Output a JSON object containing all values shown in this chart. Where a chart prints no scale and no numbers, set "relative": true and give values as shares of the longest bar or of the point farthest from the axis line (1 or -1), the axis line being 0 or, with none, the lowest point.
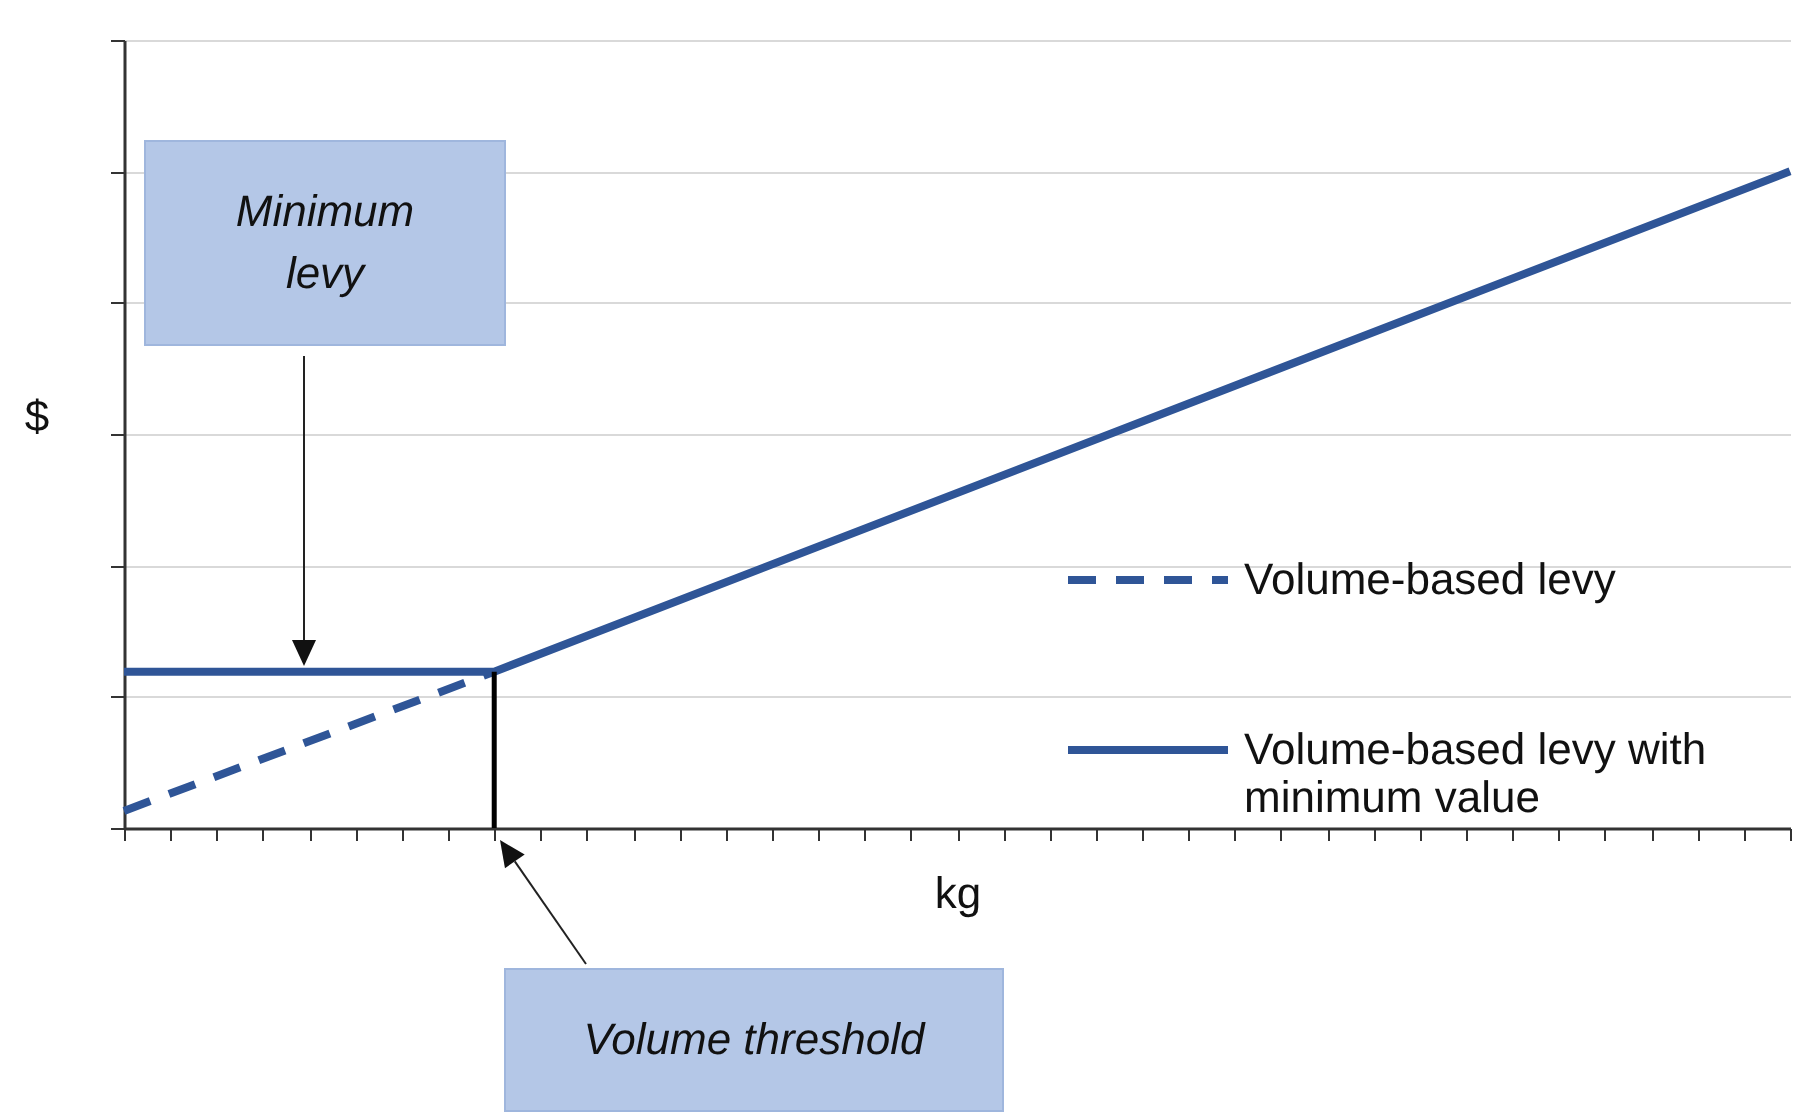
{
  "chart_data": {
    "type": "line",
    "relative": true,
    "xlabel": "kg",
    "ylabel": "$",
    "categories": [
      null,
      null,
      null,
      null,
      null,
      null,
      null,
      null,
      null,
      null,
      null,
      null,
      null,
      null,
      null,
      null,
      null,
      null,
      null,
      null,
      null,
      null,
      null,
      null,
      null,
      null,
      null,
      null,
      null,
      null,
      null,
      null,
      null,
      null,
      null,
      null,
      null
    ],
    "series": [
      {
        "name": "Volume-based levy",
        "color": "#2f5597",
        "line_style": "dashed",
        "values": [
          0.026,
          null,
          null,
          null,
          null,
          null,
          null,
          null,
          0.238,
          null,
          null,
          null,
          null,
          null,
          null,
          null,
          null,
          null,
          null,
          null,
          null,
          null,
          null,
          null,
          null,
          null,
          null,
          null,
          null,
          null,
          null,
          null,
          null,
          null,
          null,
          null,
          null
        ]
      },
      {
        "name": "Volume-based levy with minimum value",
        "color": "#2f5597",
        "line_style": "solid",
        "values": [
          0.238,
          null,
          null,
          null,
          null,
          null,
          null,
          null,
          0.238,
          null,
          null,
          null,
          null,
          null,
          null,
          null,
          null,
          null,
          null,
          null,
          null,
          null,
          null,
          null,
          null,
          null,
          null,
          null,
          null,
          null,
          null,
          null,
          null,
          null,
          null,
          null,
          1
        ]
      }
    ],
    "annotations": [
      "Minimum levy",
      "Volume threshold"
    ],
    "grid": "y",
    "legend": "right"
  }
}
